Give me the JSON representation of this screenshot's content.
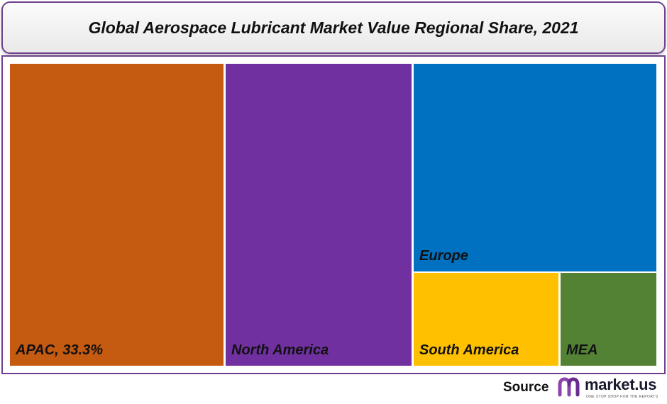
{
  "chart_data": {
    "type": "treemap",
    "title": "Global Aerospace Lubricant Market Value Regional Share, 2021",
    "tiles": [
      {
        "name": "APAC",
        "label": "APAC, 33.3%",
        "value": 33.3,
        "color": "#c55a11"
      },
      {
        "name": "North America",
        "label": "North America",
        "color": "#7030a0"
      },
      {
        "name": "Europe",
        "label": "Europe",
        "color": "#0070c0"
      },
      {
        "name": "South America",
        "label": "South America",
        "color": "#ffc000"
      },
      {
        "name": "MEA",
        "label": "MEA",
        "color": "#548235"
      }
    ]
  },
  "footer": {
    "source_label": "Source",
    "brand_name": "market.us",
    "brand_tagline": "ONE STOP SHOP FOR THE REPORTS",
    "brand_color": "#8e44ad"
  }
}
